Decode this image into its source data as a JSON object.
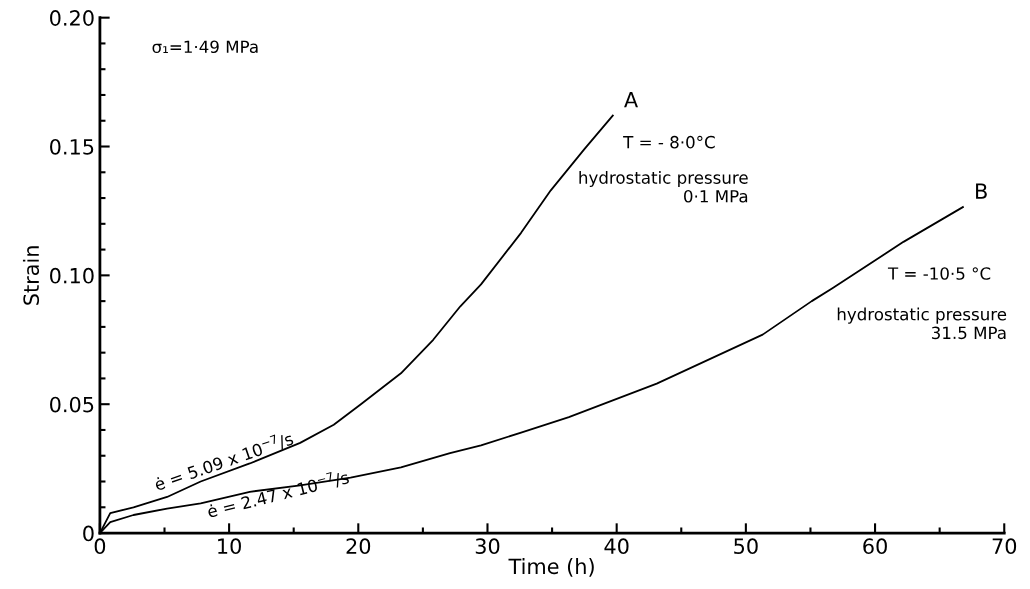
{
  "chart_data": {
    "type": "line",
    "xlabel": "Time (h)",
    "ylabel": "Strain",
    "xlim": [
      0,
      70
    ],
    "xticks": [
      0,
      10,
      20,
      30,
      40,
      50,
      60,
      70
    ],
    "ylim": [
      0,
      0.2
    ],
    "yticks": [
      {
        "value": 0,
        "label": "0"
      },
      {
        "value": 0.05,
        "label": "0.05"
      },
      {
        "value": 0.1,
        "label": "0.10"
      },
      {
        "value": 0.15,
        "label": "0.15"
      },
      {
        "value": 0.2,
        "label": "0.20"
      }
    ],
    "grid": false,
    "legend": false,
    "marker": "none",
    "line_style": "solid",
    "series": [
      {
        "color": "#000000",
        "x": [
          0,
          0.8,
          2.6,
          5.2,
          7.8,
          11.6,
          15.5,
          18.1,
          20.2,
          23.3,
          25.8,
          27.9,
          29.5,
          32.6,
          34.9,
          37.5,
          39.7
        ],
        "values": [
          0,
          0.0077,
          0.01,
          0.014,
          0.02,
          0.027,
          0.035,
          0.042,
          0.05,
          0.062,
          0.075,
          0.088,
          0.0965,
          0.1165,
          0.133,
          0.149,
          0.162
        ]
      },
      {
        "color": "#000000",
        "x": [
          0,
          0.8,
          2.6,
          5.2,
          7.8,
          11.6,
          15.5,
          19.4,
          23.3,
          27.1,
          29.5,
          32.6,
          36.3,
          43.1,
          51.3,
          55.1,
          56.7,
          62.2,
          66.8
        ],
        "values": [
          0,
          0.0042,
          0.007,
          0.0095,
          0.0115,
          0.016,
          0.0185,
          0.0215,
          0.0255,
          0.031,
          0.034,
          0.039,
          0.045,
          0.058,
          0.077,
          0.09,
          0.095,
          0.113,
          0.1265
        ]
      }
    ],
    "annotations": [
      {
        "text": "A",
        "x": 39.7,
        "y": 0.162
      },
      {
        "text": "B",
        "x": 66.8,
        "y": 0.1265
      },
      "σ₁=1·49 MPa",
      "T = - 8·0°C",
      "hydrostatic pressure\n0·1 MPa",
      "T = -10·5 °C",
      "hydrostatic pressure\n31.5 MPa",
      "ė = 5.09 x 10$^{−7}$/s",
      "ė = 2.47 x 10$^{−7}$/s"
    ]
  }
}
